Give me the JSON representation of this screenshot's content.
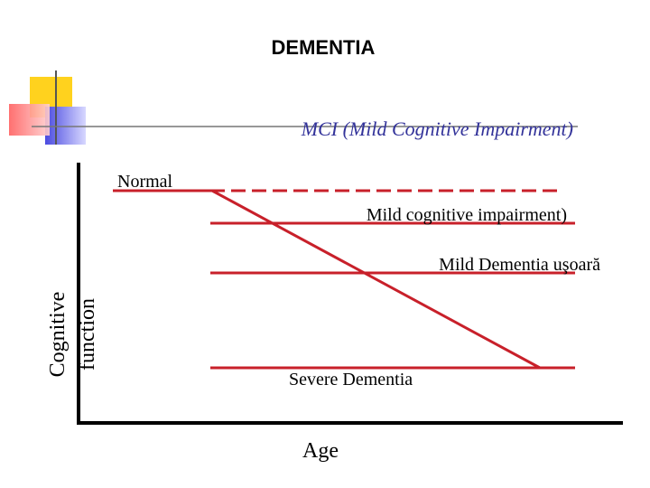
{
  "title": "DEMENTIA",
  "subtitle": "MCI (Mild Cognitive Impairment)",
  "levels": {
    "normal": "Normal",
    "mci": "Mild cognitive impairment)",
    "mild": "Mild Dementia uşoară",
    "severe": "Severe Dementia"
  },
  "axes": {
    "x_label": "Age",
    "y_label": [
      "Cognitive",
      "function"
    ]
  }
}
